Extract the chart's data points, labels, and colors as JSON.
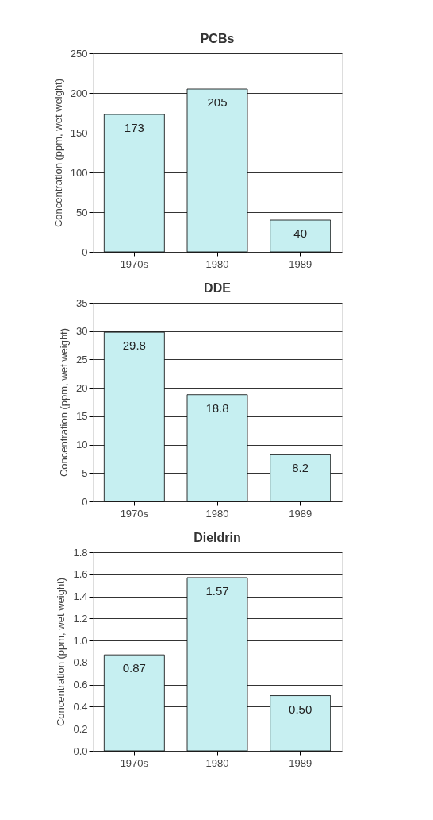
{
  "chart_data": [
    {
      "type": "bar",
      "title": "PCBs",
      "ylabel": "Concentration (ppm, wet weight)",
      "categories": [
        "1970s",
        "1980",
        "1989"
      ],
      "values": [
        173,
        205,
        40
      ],
      "color": "#c6eff1",
      "ylim": [
        0,
        250
      ],
      "yticks": [
        0,
        50,
        100,
        150,
        200,
        250
      ],
      "grid": "y",
      "data_labels": true
    },
    {
      "type": "bar",
      "title": "DDE",
      "ylabel": "Concentration (ppm, wet weight)",
      "categories": [
        "1970s",
        "1980",
        "1989"
      ],
      "values": [
        29.8,
        18.8,
        8.2
      ],
      "color": "#c6eff1",
      "ylim": [
        0,
        35
      ],
      "yticks": [
        0,
        5,
        10,
        15,
        20,
        25,
        30,
        35
      ],
      "grid": "y",
      "data_labels": true
    },
    {
      "type": "bar",
      "title": "Dieldrin",
      "ylabel": "Concentration (ppm, wet weight)",
      "categories": [
        "1970s",
        "1980",
        "1989"
      ],
      "values": [
        0.87,
        1.57,
        0.5
      ],
      "value_labels": [
        "0.87",
        "1.57",
        "0.50"
      ],
      "color": "#c6eff1",
      "ylim": [
        0,
        1.8
      ],
      "yticks": [
        {
          "value": 0,
          "label": "0.0"
        },
        {
          "value": 0.2,
          "label": "0.2"
        },
        {
          "value": 0.4,
          "label": "0.4"
        },
        {
          "value": 0.6,
          "label": "0.6"
        },
        {
          "value": 0.8,
          "label": "0.8"
        },
        {
          "value": 1.0,
          "label": "1.0"
        },
        {
          "value": 1.2,
          "label": "1.2"
        },
        {
          "value": 1.4,
          "label": "1.4"
        },
        {
          "value": 1.6,
          "label": "1.6"
        },
        {
          "value": 1.8,
          "label": "1.8"
        }
      ],
      "grid": "y"
    }
  ]
}
